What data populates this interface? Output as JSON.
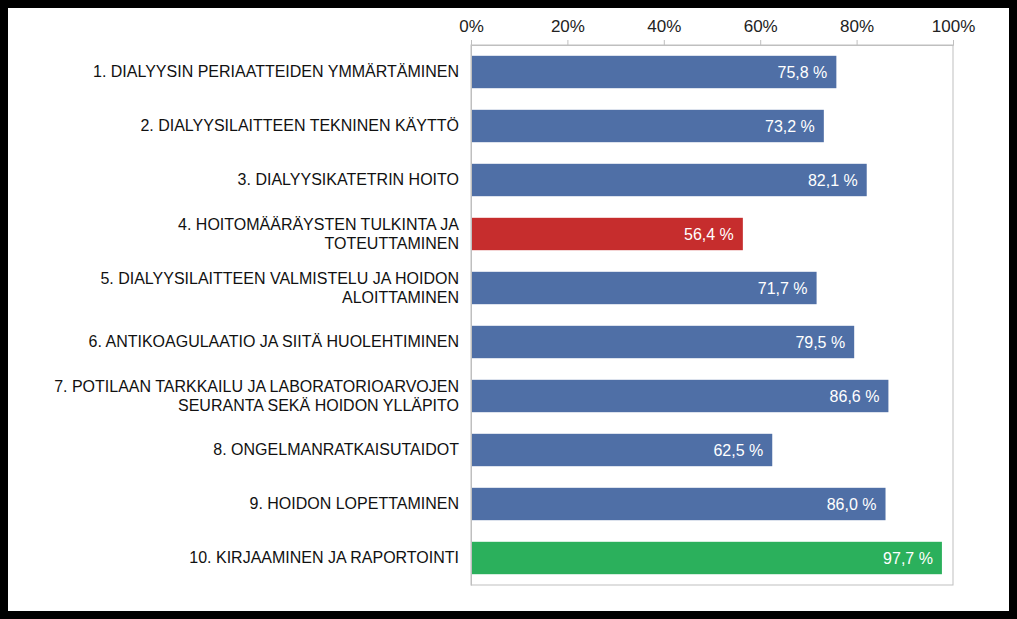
{
  "chart_data": {
    "type": "bar",
    "orientation": "horizontal",
    "categories": [
      "1. DIALYYSIN PERIAATTEIDEN YMMÄRTÄMINEN",
      "2. DIALYYSILAITTEEN TEKNINEN KÄYTTÖ",
      "3. DIALYYSIKATETRIN HOITO",
      "4. HOITOMÄÄRÄYSTEN TULKINTA JA\nTOTEUTTAMINEN",
      "5. DIALYYSILAITTEEN VALMISTELU JA HOIDON\nALOITTAMINEN",
      "6. ANTIKOAGULAATIO JA SIITÄ HUOLEHTIMINEN",
      "7. POTILAAN TARKKAILU JA LABORATORIOARVOJEN\nSEURANTA SEKÄ HOIDON YLLÄPITO",
      "8. ONGELMANRATKAISUTAIDOT",
      "9. HOIDON LOPETTAMINEN",
      "10. KIRJAAMINEN JA RAPORTOINTI"
    ],
    "values": [
      75.8,
      73.2,
      82.1,
      56.4,
      71.7,
      79.5,
      86.6,
      62.5,
      86.0,
      97.7
    ],
    "value_labels": [
      "75,8 %",
      "73,2 %",
      "82,1 %",
      "56,4 %",
      "71,7 %",
      "79,5 %",
      "86,6 %",
      "62,5 %",
      "86,0 %",
      "97,7 %"
    ],
    "colors": [
      "#4f6fa6",
      "#4f6fa6",
      "#4f6fa6",
      "#c62d2d",
      "#4f6fa6",
      "#4f6fa6",
      "#4f6fa6",
      "#4f6fa6",
      "#4f6fa6",
      "#2bb05c"
    ],
    "xlim": [
      0,
      100
    ],
    "xticks": [
      {
        "value": 0,
        "label": "0%"
      },
      {
        "value": 20,
        "label": "20%"
      },
      {
        "value": 40,
        "label": "40%"
      },
      {
        "value": 60,
        "label": "60%"
      },
      {
        "value": 80,
        "label": "80%"
      },
      {
        "value": 100,
        "label": "100%"
      }
    ],
    "data_labels": true,
    "grid": false
  }
}
